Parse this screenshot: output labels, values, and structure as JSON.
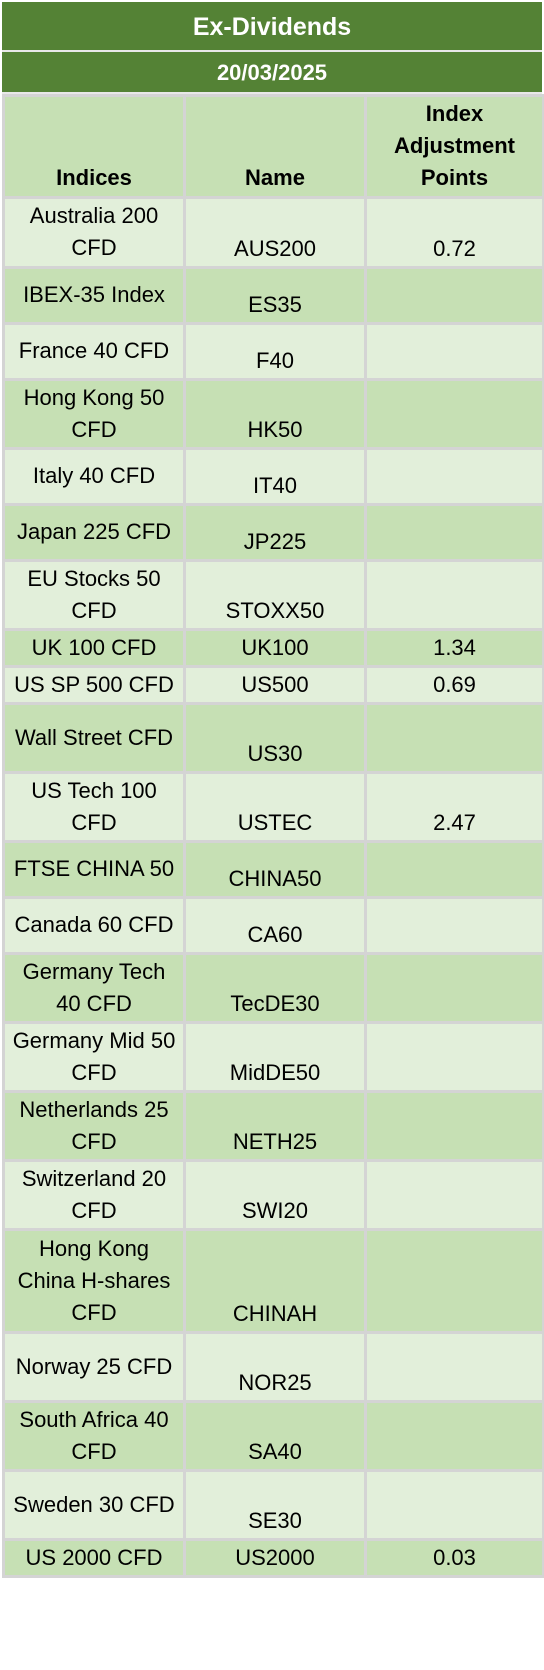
{
  "header": {
    "title": "Ex-Dividends",
    "date": "20/03/2025"
  },
  "table": {
    "columns": [
      "Indices",
      "Name",
      "Index Adjustment Points"
    ],
    "rows": [
      {
        "index": "Australia 200 CFD",
        "name": "AUS200",
        "points": "0.72"
      },
      {
        "index": "IBEX-35 Index",
        "name": "ES35",
        "points": ""
      },
      {
        "index": "France 40 CFD",
        "name": "F40",
        "points": ""
      },
      {
        "index": "Hong Kong 50 CFD",
        "name": "HK50",
        "points": ""
      },
      {
        "index": "Italy 40 CFD",
        "name": "IT40",
        "points": ""
      },
      {
        "index": "Japan 225 CFD",
        "name": "JP225",
        "points": ""
      },
      {
        "index": "EU Stocks 50 CFD",
        "name": "STOXX50",
        "points": ""
      },
      {
        "index": "UK 100 CFD",
        "name": "UK100",
        "points": "1.34"
      },
      {
        "index": "US SP 500 CFD",
        "name": "US500",
        "points": "0.69"
      },
      {
        "index": "Wall Street CFD",
        "name": "US30",
        "points": ""
      },
      {
        "index": "US Tech 100 CFD",
        "name": "USTEC",
        "points": "2.47"
      },
      {
        "index": "FTSE CHINA 50",
        "name": "CHINA50",
        "points": ""
      },
      {
        "index": "Canada 60 CFD",
        "name": "CA60",
        "points": ""
      },
      {
        "index": "Germany Tech 40 CFD",
        "name": "TecDE30",
        "points": ""
      },
      {
        "index": "Germany Mid 50 CFD",
        "name": "MidDE50",
        "points": ""
      },
      {
        "index": "Netherlands 25 CFD",
        "name": "NETH25",
        "points": ""
      },
      {
        "index": "Switzerland 20 CFD",
        "name": "SWI20",
        "points": ""
      },
      {
        "index": "Hong Kong China H-shares CFD",
        "name": "CHINAH",
        "points": ""
      },
      {
        "index": "Norway 25 CFD",
        "name": "NOR25",
        "points": ""
      },
      {
        "index": "South Africa 40 CFD",
        "name": "SA40",
        "points": ""
      },
      {
        "index": "Sweden 30 CFD",
        "name": "SE30",
        "points": ""
      },
      {
        "index": "US 2000 CFD",
        "name": "US2000",
        "points": "0.03"
      }
    ]
  }
}
